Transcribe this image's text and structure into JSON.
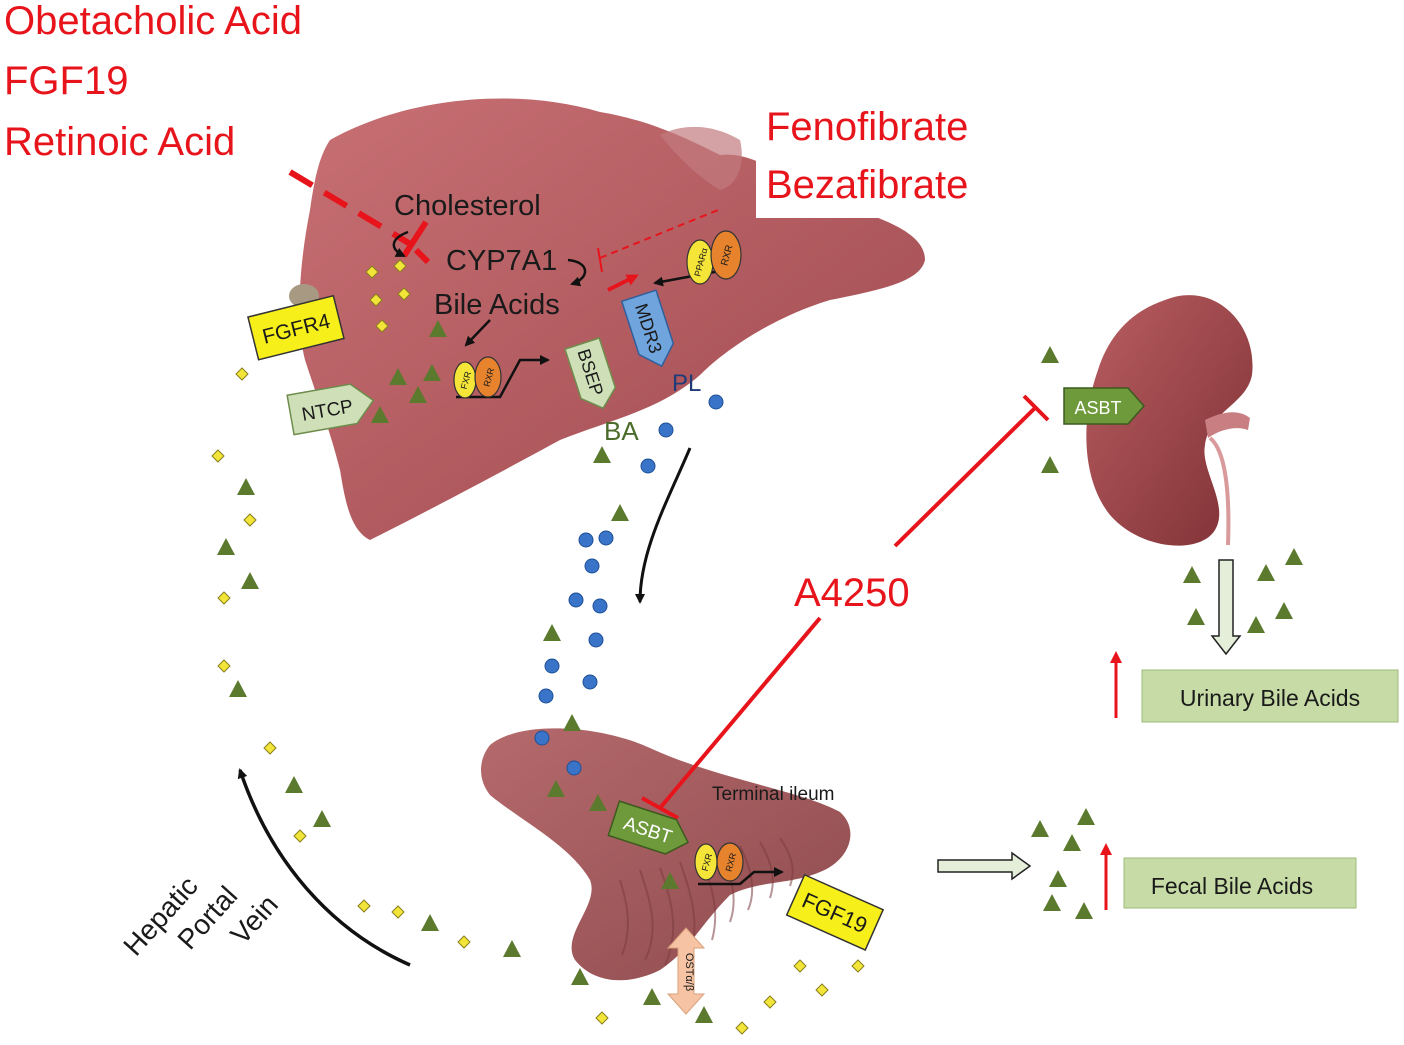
{
  "drug_labels": {
    "obetacholic": "Obetacholic Acid",
    "fgf19": "FGF19",
    "retinoic": "Retinoic Acid",
    "fenofibrate": "Fenofibrate",
    "bezafibrate": "Bezafibrate",
    "a4250": "A4250"
  },
  "liver": {
    "cholesterol": "Cholesterol",
    "cyp7a1": "CYP7A1",
    "bile_acids": "Bile Acids",
    "fgfr4": "FGFR4",
    "ntcp": "NTCP",
    "bsep": "BSEP",
    "mdr3": "MDR3",
    "fxr": "FXR",
    "rxr": "RXR",
    "ppar": "PPARα",
    "pl": "PL",
    "ba": "BA"
  },
  "kidney": {
    "asbt": "ASBT",
    "urinary": "Urinary Bile Acids"
  },
  "intestine": {
    "terminal_ileum": "Terminal ileum",
    "asbt": "ASBT",
    "fxr": "FXR",
    "rxr": "RXR",
    "fgf19": "FGF19",
    "ost": "OSTα/β",
    "fecal": "Fecal Bile Acids"
  },
  "portal": {
    "line1": "Hepatic",
    "line2": "Portal",
    "line3": "Vein"
  },
  "colors": {
    "drug_red": "#e8141c",
    "organ": "#b65a5e",
    "bile_acid_triangle": "#5b7a2e",
    "phospholipid_dot": "#3a74c9",
    "fgf19_diamond": "#f2e53a",
    "label_box": "#c6dba6"
  }
}
